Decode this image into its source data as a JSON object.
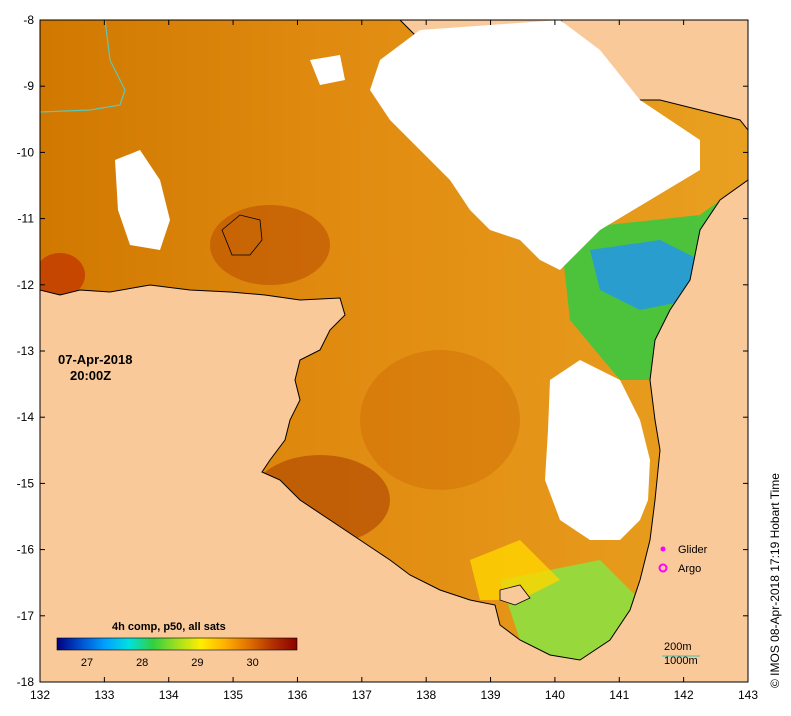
{
  "map": {
    "date_label": "07-Apr-2018",
    "time_label": "20:00Z",
    "credit": "© IMOS 08-Apr-2018 17:19 Hobart Time",
    "lon_ticks": [
      "132",
      "133",
      "134",
      "135",
      "136",
      "137",
      "138",
      "139",
      "140",
      "141",
      "142",
      "143"
    ],
    "lat_ticks": [
      "-8",
      "-9",
      "-10",
      "-11",
      "-12",
      "-13",
      "-14",
      "-15",
      "-16",
      "-17",
      "-18"
    ],
    "colors": {
      "land": "#f9c99a",
      "cloud": "#ffffff",
      "coast": "#000000",
      "contour_200m": "#5fc6b6"
    }
  },
  "legend": {
    "glider_label": "Glider",
    "argo_label": "Argo",
    "glider_color": "#ff00ff",
    "argo_color": "#ff00ff"
  },
  "colorbar": {
    "label": "4h comp, p50, all sats",
    "ticks": [
      "27",
      "28",
      "29",
      "30"
    ],
    "colors": [
      "#000080",
      "#0050d0",
      "#00a0ff",
      "#00e0e0",
      "#30d040",
      "#a0e020",
      "#ffee00",
      "#ffb000",
      "#e07000",
      "#b03000",
      "#8b0000"
    ]
  },
  "depth_legend": {
    "label_200": "200m",
    "label_1000": "1000m"
  }
}
